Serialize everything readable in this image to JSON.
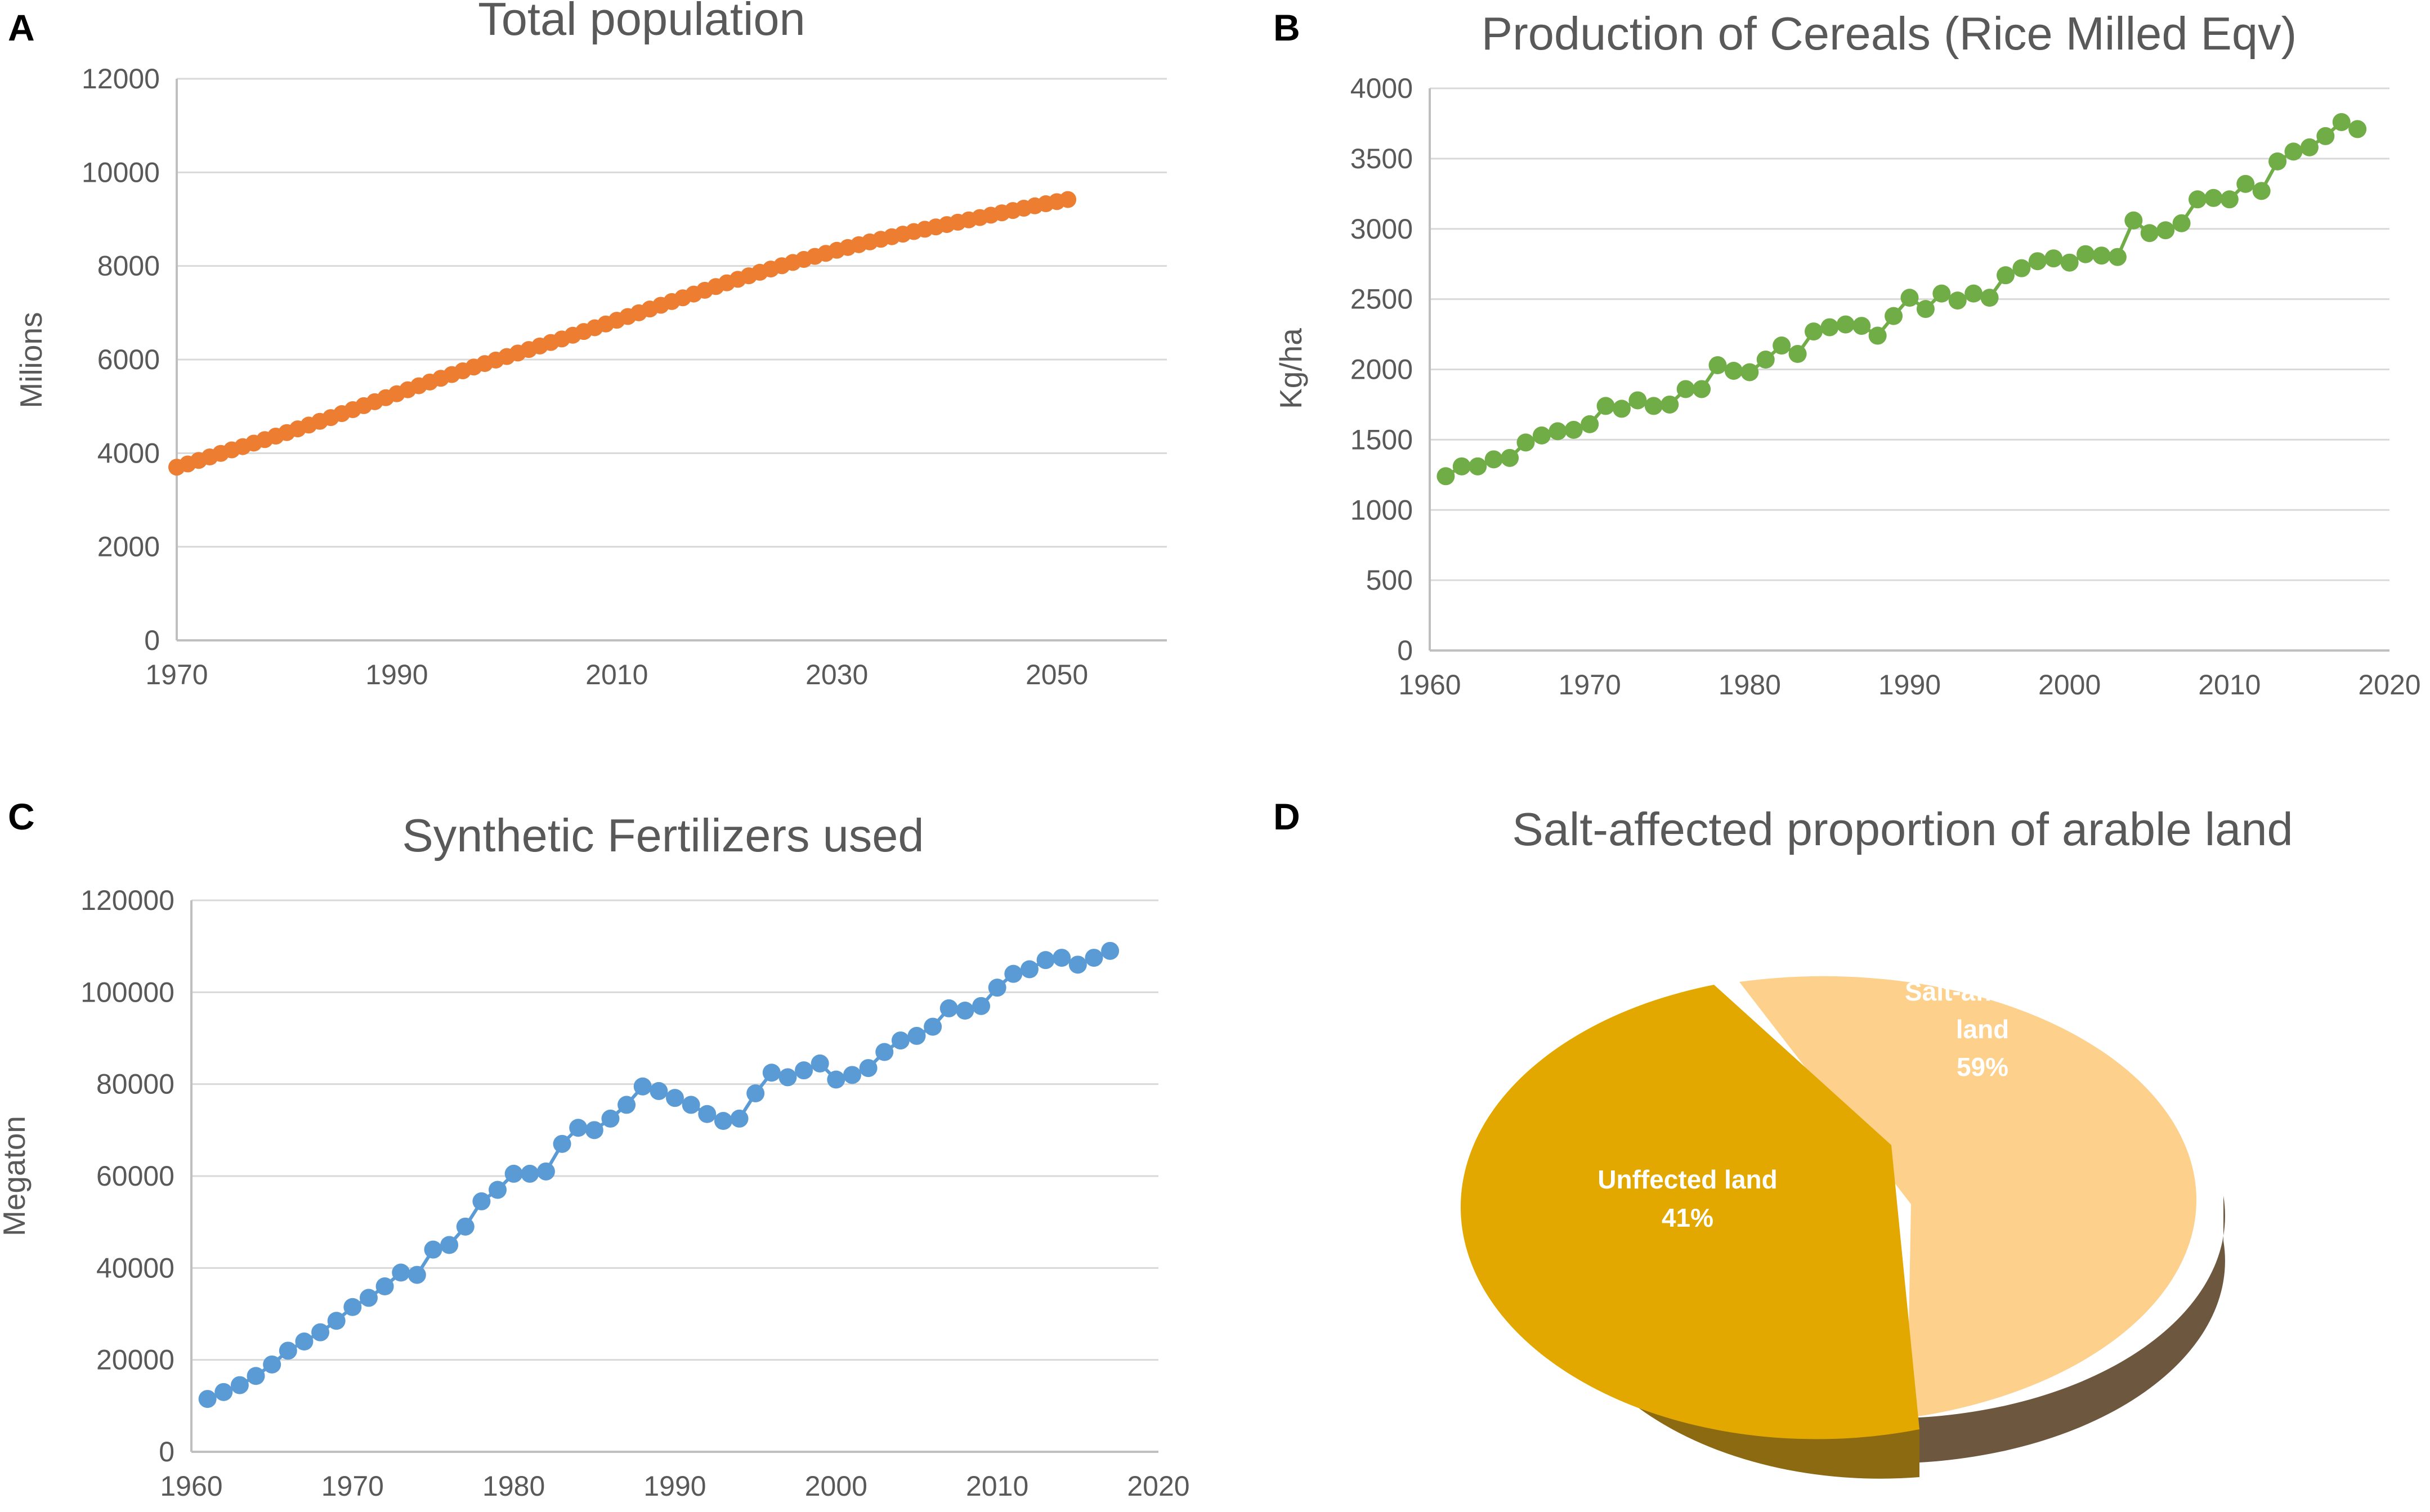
{
  "figure": {
    "panels": [
      "A",
      "B",
      "C",
      "D"
    ]
  },
  "chart_data": [
    {
      "id": "A",
      "panel_letter": "A",
      "type": "scatter",
      "title": "Total population",
      "xlabel": "",
      "ylabel": "Milions",
      "xlim": [
        1970,
        2060
      ],
      "ylim": [
        0,
        12000
      ],
      "xticks": [
        1970,
        1990,
        2010,
        2030,
        2050
      ],
      "yticks": [
        0,
        2000,
        4000,
        6000,
        8000,
        10000,
        12000
      ],
      "grid": true,
      "color": "#ED7D31",
      "series": [
        {
          "name": "Total population",
          "x": [
            1970,
            1971,
            1972,
            1973,
            1974,
            1975,
            1976,
            1977,
            1978,
            1979,
            1980,
            1981,
            1982,
            1983,
            1984,
            1985,
            1986,
            1987,
            1988,
            1989,
            1990,
            1991,
            1992,
            1993,
            1994,
            1995,
            1996,
            1997,
            1998,
            1999,
            2000,
            2001,
            2002,
            2003,
            2004,
            2005,
            2006,
            2007,
            2008,
            2009,
            2010,
            2011,
            2012,
            2013,
            2014,
            2015,
            2016,
            2017,
            2018,
            2019,
            2020,
            2021,
            2022,
            2023,
            2024,
            2025,
            2026,
            2027,
            2028,
            2029,
            2030,
            2031,
            2032,
            2033,
            2034,
            2035,
            2036,
            2037,
            2038,
            2039,
            2040,
            2041,
            2042,
            2043,
            2044,
            2045,
            2046,
            2047,
            2048,
            2049,
            2050,
            2051
          ],
          "y": [
            3700,
            3770,
            3845,
            3920,
            3995,
            4070,
            4140,
            4215,
            4290,
            4365,
            4440,
            4520,
            4600,
            4680,
            4760,
            4845,
            4930,
            5015,
            5100,
            5185,
            5270,
            5355,
            5440,
            5520,
            5600,
            5680,
            5760,
            5840,
            5915,
            5990,
            6065,
            6140,
            6215,
            6290,
            6365,
            6440,
            6520,
            6600,
            6680,
            6760,
            6840,
            6920,
            7000,
            7080,
            7160,
            7240,
            7320,
            7400,
            7480,
            7560,
            7640,
            7715,
            7790,
            7865,
            7935,
            8005,
            8075,
            8140,
            8205,
            8270,
            8335,
            8395,
            8455,
            8515,
            8570,
            8625,
            8680,
            8735,
            8785,
            8835,
            8885,
            8935,
            8985,
            9035,
            9085,
            9135,
            9185,
            9235,
            9285,
            9330,
            9375,
            9420
          ]
        }
      ]
    },
    {
      "id": "B",
      "panel_letter": "B",
      "type": "line",
      "title": "Production of Cereals (Rice Milled Eqv)",
      "xlabel": "",
      "ylabel": "Kg/ha",
      "xlim": [
        1960,
        2020
      ],
      "ylim": [
        0,
        4000
      ],
      "xticks": [
        1960,
        1970,
        1980,
        1990,
        2000,
        2010,
        2020
      ],
      "yticks": [
        0,
        500,
        1000,
        1500,
        2000,
        2500,
        3000,
        3500,
        4000
      ],
      "grid": true,
      "color": "#70AD47",
      "series": [
        {
          "name": "Production of Cereals",
          "x": [
            1961,
            1962,
            1963,
            1964,
            1965,
            1966,
            1967,
            1968,
            1969,
            1970,
            1971,
            1972,
            1973,
            1974,
            1975,
            1976,
            1977,
            1978,
            1979,
            1980,
            1981,
            1982,
            1983,
            1984,
            1985,
            1986,
            1987,
            1988,
            1989,
            1990,
            1991,
            1992,
            1993,
            1994,
            1995,
            1996,
            1997,
            1998,
            1999,
            2000,
            2001,
            2002,
            2003,
            2004,
            2005,
            2006,
            2007,
            2008,
            2009,
            2010,
            2011,
            2012,
            2013,
            2014,
            2015,
            2016,
            2017,
            2018
          ],
          "y": [
            1240,
            1310,
            1310,
            1360,
            1370,
            1480,
            1530,
            1560,
            1570,
            1610,
            1740,
            1720,
            1780,
            1740,
            1750,
            1860,
            1860,
            2030,
            1990,
            1980,
            2070,
            2170,
            2110,
            2270,
            2300,
            2320,
            2310,
            2240,
            2380,
            2510,
            2430,
            2540,
            2490,
            2540,
            2510,
            2670,
            2720,
            2770,
            2790,
            2760,
            2820,
            2810,
            2800,
            3060,
            2970,
            2990,
            3040,
            3210,
            3220,
            3210,
            3320,
            3270,
            3480,
            3550,
            3580,
            3660,
            3760,
            3710
          ]
        }
      ]
    },
    {
      "id": "C",
      "panel_letter": "C",
      "type": "line",
      "title": "Synthetic Fertilizers used",
      "xlabel": "",
      "ylabel": "Megaton",
      "xlim": [
        1960,
        2020
      ],
      "ylim": [
        0,
        120000
      ],
      "xticks": [
        1960,
        1970,
        1980,
        1990,
        2000,
        2010,
        2020
      ],
      "yticks": [
        0,
        20000,
        40000,
        60000,
        80000,
        100000,
        120000
      ],
      "grid": true,
      "color": "#5B9BD5",
      "series": [
        {
          "name": "Synthetic Fertilizers used",
          "x": [
            1961,
            1962,
            1963,
            1964,
            1965,
            1966,
            1967,
            1968,
            1969,
            1970,
            1971,
            1972,
            1973,
            1974,
            1975,
            1976,
            1977,
            1978,
            1979,
            1980,
            1981,
            1982,
            1983,
            1984,
            1985,
            1986,
            1987,
            1988,
            1989,
            1990,
            1991,
            1992,
            1993,
            1994,
            1995,
            1996,
            1997,
            1998,
            1999,
            2000,
            2001,
            2002,
            2003,
            2004,
            2005,
            2006,
            2007,
            2008,
            2009,
            2010,
            2011,
            2012,
            2013,
            2014,
            2015,
            2016,
            2017
          ],
          "y": [
            11500,
            13000,
            14500,
            16500,
            19000,
            22000,
            24000,
            26000,
            28500,
            31500,
            33500,
            36000,
            39000,
            38500,
            44000,
            45000,
            49000,
            54500,
            57000,
            60500,
            60500,
            61000,
            67000,
            70500,
            70000,
            72500,
            75500,
            79500,
            78500,
            77000,
            75500,
            73500,
            72000,
            72500,
            78000,
            82500,
            81500,
            83000,
            84500,
            81000,
            82000,
            83500,
            87000,
            89500,
            90500,
            92500,
            96500,
            96000,
            97000,
            101000,
            104000,
            105000,
            107000,
            107500,
            106000,
            107500,
            109000
          ]
        }
      ]
    },
    {
      "id": "D",
      "panel_letter": "D",
      "type": "pie",
      "title": "Salt-affected proportion of arable land",
      "slices": [
        {
          "label_line1": "Salt-affected",
          "label_line2": "land",
          "value_text": "59%",
          "value": 59,
          "color": "#FDD08C",
          "side_color": "#6E573F"
        },
        {
          "label_line1": "Unffected land",
          "label_line2": "",
          "value_text": "41%",
          "value": 41,
          "color": "#E3A800",
          "side_color": "#8C6A12"
        }
      ]
    }
  ]
}
